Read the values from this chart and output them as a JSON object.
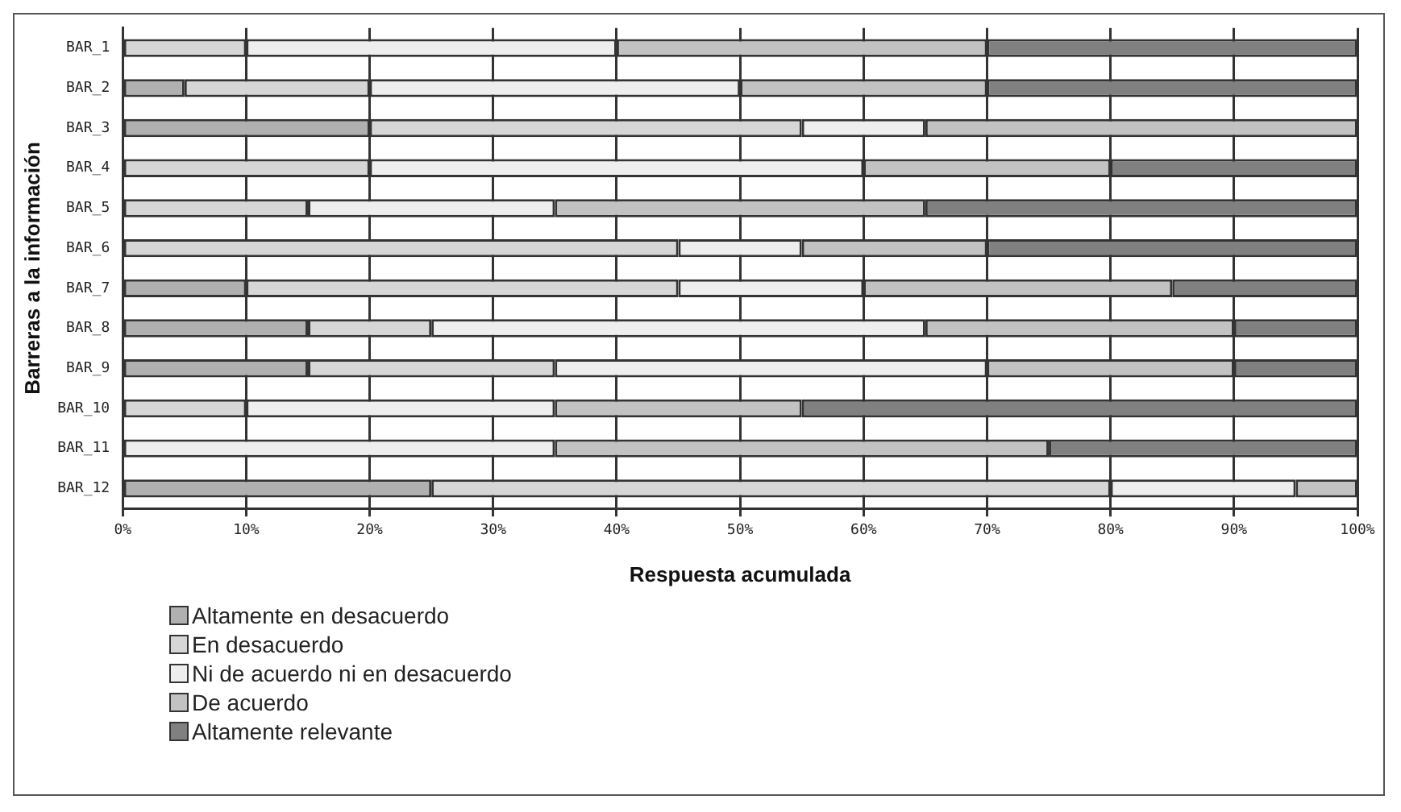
{
  "chart_data": {
    "type": "bar",
    "orientation": "horizontal",
    "stacked": true,
    "xlabel": "Respuesta acumulada",
    "ylabel": "Barreras a la información",
    "categories": [
      "BAR_1",
      "BAR_2",
      "BAR_3",
      "BAR_4",
      "BAR_5",
      "BAR_6",
      "BAR_7",
      "BAR_8",
      "BAR_9",
      "BAR_10",
      "BAR_11",
      "BAR_12"
    ],
    "series": [
      {
        "name": "Altamente en desacuerdo",
        "color": "#b0b0b0",
        "values": [
          0,
          5,
          20,
          0,
          0,
          0,
          10,
          15,
          15,
          0,
          0,
          25
        ]
      },
      {
        "name": "En desacuerdo",
        "color": "#d6d6d6",
        "values": [
          10,
          15,
          35,
          20,
          15,
          45,
          35,
          10,
          20,
          10,
          0,
          55
        ]
      },
      {
        "name": "Ni de acuerdo ni en desacuerdo",
        "color": "#eeeeee",
        "values": [
          30,
          30,
          10,
          40,
          20,
          10,
          15,
          40,
          35,
          25,
          35,
          15
        ]
      },
      {
        "name": "De acuerdo",
        "color": "#c2c2c2",
        "values": [
          30,
          20,
          35,
          20,
          30,
          15,
          25,
          25,
          20,
          20,
          40,
          5
        ]
      },
      {
        "name": "Altamente relevante",
        "color": "#808080",
        "values": [
          30,
          30,
          0,
          20,
          35,
          30,
          15,
          10,
          10,
          45,
          25,
          0
        ]
      }
    ],
    "xlim": [
      0,
      100
    ],
    "xticks": [
      {
        "value": 0,
        "label": "0%"
      },
      {
        "value": 10,
        "label": "10%"
      },
      {
        "value": 20,
        "label": "20%"
      },
      {
        "value": 30,
        "label": "30%"
      },
      {
        "value": 40,
        "label": "40%"
      },
      {
        "value": 50,
        "label": "50%"
      },
      {
        "value": 60,
        "label": "60%"
      },
      {
        "value": 70,
        "label": "70%"
      },
      {
        "value": 80,
        "label": "80%"
      },
      {
        "value": 90,
        "label": "90%"
      },
      {
        "value": 100,
        "label": "100%"
      }
    ],
    "grid": "x",
    "legend": "bottom left"
  }
}
